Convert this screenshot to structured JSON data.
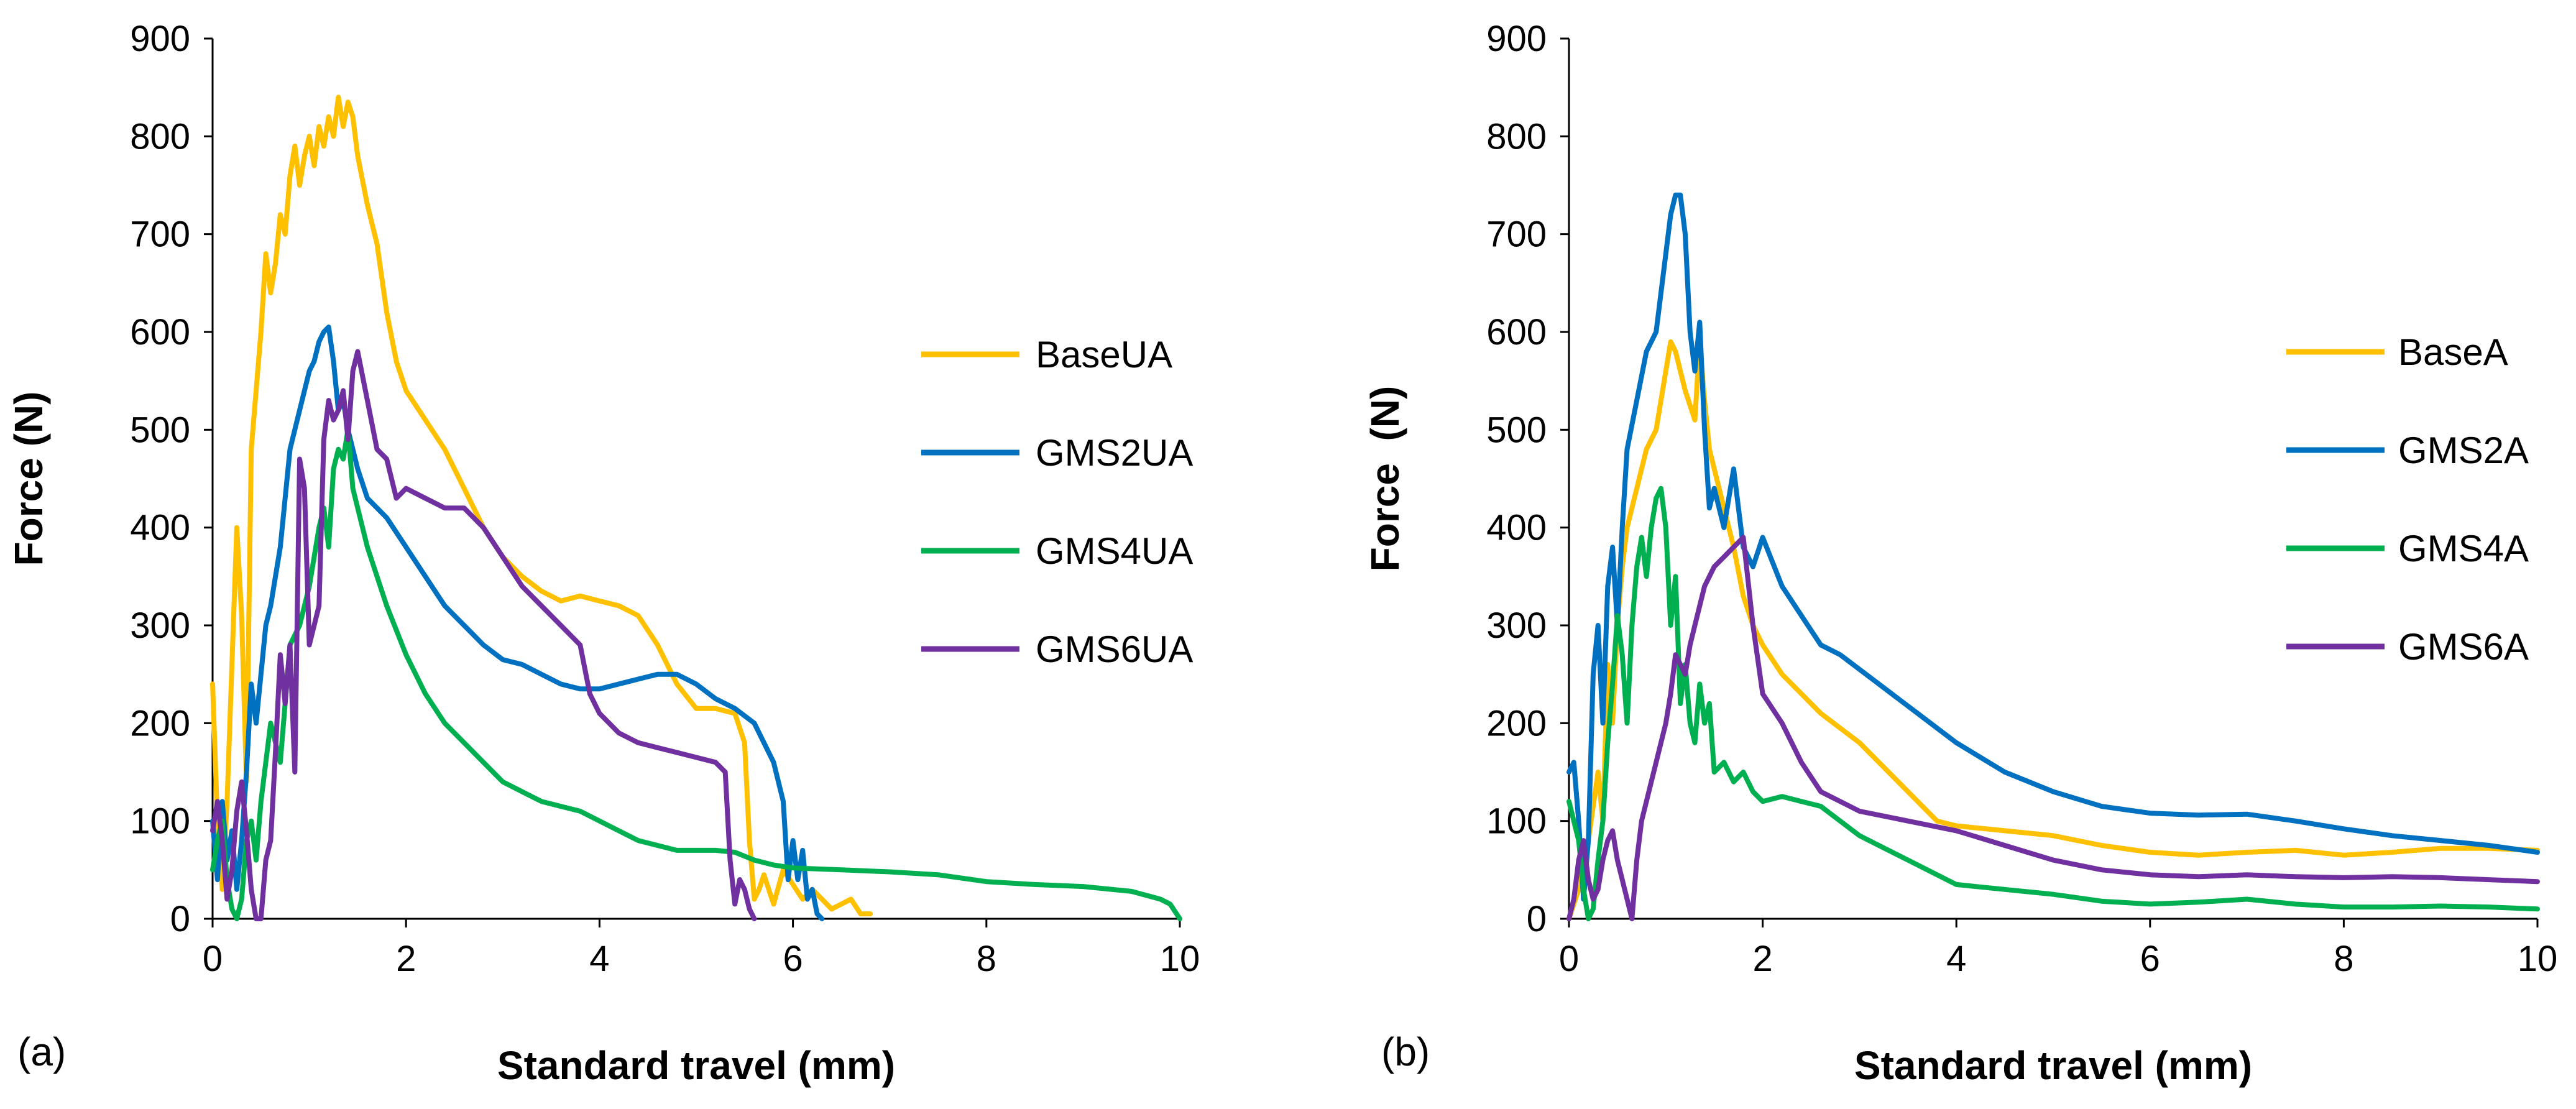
{
  "chart_data": [
    {
      "type": "line",
      "panel_label": "(a)",
      "xlabel": "Standard travel (mm)",
      "ylabel": "Force (N)",
      "xlim": [
        0,
        10
      ],
      "ylim": [
        0,
        900
      ],
      "xticks": [
        "0",
        "2",
        "4",
        "6",
        "8",
        "10"
      ],
      "yticks": [
        "0",
        "100",
        "200",
        "300",
        "400",
        "500",
        "600",
        "700",
        "800",
        "900"
      ],
      "grid": false,
      "legend_position": "right",
      "series": [
        {
          "name": "BaseUA",
          "color": "#FFC000",
          "x": [
            0,
            0.05,
            0.1,
            0.15,
            0.2,
            0.25,
            0.3,
            0.35,
            0.4,
            0.45,
            0.5,
            0.55,
            0.6,
            0.65,
            0.7,
            0.75,
            0.8,
            0.85,
            0.9,
            0.95,
            1.0,
            1.05,
            1.1,
            1.15,
            1.2,
            1.25,
            1.3,
            1.35,
            1.4,
            1.45,
            1.5,
            1.6,
            1.7,
            1.8,
            1.9,
            2.0,
            2.2,
            2.4,
            2.6,
            2.8,
            3.0,
            3.2,
            3.4,
            3.6,
            3.8,
            4.0,
            4.2,
            4.4,
            4.6,
            4.8,
            5.0,
            5.2,
            5.4,
            5.5,
            5.55,
            5.6,
            5.65,
            5.7,
            5.8,
            5.9,
            6.0,
            6.1,
            6.2,
            6.3,
            6.4,
            6.5,
            6.6,
            6.7,
            6.8
          ],
          "y": [
            240,
            100,
            30,
            120,
            260,
            400,
            310,
            140,
            480,
            540,
            600,
            680,
            640,
            670,
            720,
            700,
            760,
            790,
            750,
            780,
            800,
            770,
            810,
            790,
            820,
            800,
            840,
            810,
            835,
            820,
            780,
            730,
            690,
            620,
            570,
            540,
            510,
            480,
            440,
            400,
            370,
            350,
            335,
            325,
            330,
            325,
            320,
            310,
            280,
            240,
            215,
            215,
            210,
            180,
            80,
            20,
            30,
            45,
            15,
            50,
            35,
            20,
            30,
            20,
            10,
            15,
            20,
            5,
            5
          ]
        },
        {
          "name": "GMS2UA",
          "color": "#0070C0",
          "x": [
            0,
            0.05,
            0.1,
            0.15,
            0.2,
            0.25,
            0.3,
            0.35,
            0.4,
            0.45,
            0.5,
            0.55,
            0.6,
            0.7,
            0.8,
            0.9,
            1.0,
            1.05,
            1.1,
            1.15,
            1.2,
            1.25,
            1.3,
            1.35,
            1.4,
            1.5,
            1.6,
            1.8,
            2.0,
            2.2,
            2.4,
            2.6,
            2.8,
            3.0,
            3.2,
            3.4,
            3.6,
            3.8,
            4.0,
            4.2,
            4.4,
            4.6,
            4.8,
            5.0,
            5.2,
            5.4,
            5.6,
            5.8,
            5.9,
            5.95,
            6.0,
            6.05,
            6.1,
            6.15,
            6.2,
            6.25,
            6.3
          ],
          "y": [
            100,
            40,
            120,
            60,
            90,
            30,
            80,
            150,
            240,
            200,
            250,
            300,
            320,
            380,
            480,
            520,
            560,
            570,
            590,
            600,
            605,
            570,
            520,
            530,
            500,
            460,
            430,
            410,
            380,
            350,
            320,
            300,
            280,
            265,
            260,
            250,
            240,
            235,
            235,
            240,
            245,
            250,
            250,
            240,
            225,
            215,
            200,
            160,
            120,
            40,
            80,
            40,
            70,
            20,
            30,
            5,
            0
          ]
        },
        {
          "name": "GMS4UA",
          "color": "#00B050",
          "x": [
            0,
            0.05,
            0.1,
            0.15,
            0.2,
            0.25,
            0.3,
            0.35,
            0.4,
            0.45,
            0.5,
            0.6,
            0.7,
            0.8,
            0.9,
            1.0,
            1.1,
            1.15,
            1.2,
            1.25,
            1.3,
            1.35,
            1.4,
            1.45,
            1.5,
            1.6,
            1.7,
            1.8,
            2.0,
            2.2,
            2.4,
            2.6,
            2.8,
            3.0,
            3.2,
            3.4,
            3.6,
            3.8,
            4.0,
            4.2,
            4.4,
            4.6,
            4.8,
            5.0,
            5.2,
            5.4,
            5.6,
            5.8,
            6.0,
            6.5,
            7.0,
            7.5,
            8.0,
            8.5,
            9.0,
            9.5,
            9.8,
            9.9,
            10.0
          ],
          "y": [
            50,
            80,
            100,
            40,
            10,
            0,
            20,
            80,
            100,
            60,
            120,
            200,
            160,
            280,
            300,
            340,
            400,
            420,
            380,
            460,
            480,
            470,
            500,
            440,
            420,
            380,
            350,
            320,
            270,
            230,
            200,
            180,
            160,
            140,
            130,
            120,
            115,
            110,
            100,
            90,
            80,
            75,
            70,
            70,
            70,
            68,
            60,
            55,
            52,
            50,
            48,
            45,
            38,
            35,
            33,
            28,
            20,
            15,
            0
          ]
        },
        {
          "name": "GMS6UA",
          "color": "#7030A0",
          "x": [
            0,
            0.05,
            0.1,
            0.15,
            0.2,
            0.25,
            0.3,
            0.35,
            0.4,
            0.45,
            0.5,
            0.55,
            0.6,
            0.65,
            0.7,
            0.75,
            0.8,
            0.85,
            0.9,
            0.95,
            1.0,
            1.05,
            1.1,
            1.15,
            1.2,
            1.25,
            1.3,
            1.35,
            1.4,
            1.45,
            1.5,
            1.6,
            1.7,
            1.8,
            1.9,
            2.0,
            2.2,
            2.4,
            2.6,
            2.8,
            3.0,
            3.2,
            3.4,
            3.6,
            3.8,
            3.9,
            4.0,
            4.2,
            4.4,
            4.6,
            4.8,
            5.0,
            5.2,
            5.3,
            5.35,
            5.4,
            5.45,
            5.5,
            5.55,
            5.6
          ],
          "y": [
            90,
            120,
            80,
            20,
            50,
            110,
            140,
            90,
            30,
            0,
            0,
            60,
            80,
            170,
            270,
            220,
            280,
            150,
            470,
            440,
            280,
            300,
            320,
            490,
            530,
            510,
            520,
            540,
            490,
            560,
            580,
            530,
            480,
            470,
            430,
            440,
            430,
            420,
            420,
            400,
            370,
            340,
            320,
            300,
            280,
            230,
            210,
            190,
            180,
            175,
            170,
            165,
            160,
            150,
            60,
            15,
            40,
            30,
            10,
            0
          ]
        }
      ]
    },
    {
      "type": "line",
      "panel_label": "(b)",
      "xlabel": "Standard travel (mm)",
      "ylabel": "Force  (N)",
      "xlim": [
        0,
        10
      ],
      "ylim": [
        0,
        900
      ],
      "xticks": [
        "0",
        "2",
        "4",
        "6",
        "8",
        "10"
      ],
      "yticks": [
        "0",
        "100",
        "200",
        "300",
        "400",
        "500",
        "600",
        "700",
        "800",
        "900"
      ],
      "grid": false,
      "legend_position": "right",
      "series": [
        {
          "name": "BaseA",
          "color": "#FFC000",
          "x": [
            0,
            0.1,
            0.2,
            0.3,
            0.35,
            0.4,
            0.45,
            0.5,
            0.55,
            0.6,
            0.7,
            0.8,
            0.9,
            1.0,
            1.05,
            1.1,
            1.2,
            1.3,
            1.35,
            1.4,
            1.45,
            1.5,
            1.6,
            1.7,
            1.8,
            1.9,
            2.0,
            2.2,
            2.4,
            2.6,
            2.8,
            3.0,
            3.2,
            3.4,
            3.6,
            3.8,
            4.0,
            4.5,
            5.0,
            5.5,
            6.0,
            6.5,
            7.0,
            7.5,
            8.0,
            8.5,
            9.0,
            9.5,
            10.0
          ],
          "y": [
            0,
            30,
            80,
            150,
            100,
            260,
            200,
            300,
            360,
            400,
            440,
            480,
            500,
            560,
            590,
            580,
            540,
            510,
            590,
            530,
            480,
            460,
            420,
            380,
            330,
            300,
            280,
            250,
            230,
            210,
            195,
            180,
            160,
            140,
            120,
            100,
            95,
            90,
            85,
            75,
            68,
            65,
            68,
            70,
            65,
            68,
            72,
            72,
            70
          ]
        },
        {
          "name": "GMS2A",
          "color": "#0070C0",
          "x": [
            0,
            0.05,
            0.1,
            0.15,
            0.2,
            0.25,
            0.3,
            0.35,
            0.4,
            0.45,
            0.5,
            0.55,
            0.6,
            0.7,
            0.8,
            0.9,
            1.0,
            1.05,
            1.1,
            1.15,
            1.2,
            1.25,
            1.3,
            1.35,
            1.4,
            1.45,
            1.5,
            1.6,
            1.7,
            1.8,
            1.9,
            2.0,
            2.2,
            2.4,
            2.6,
            2.8,
            3.0,
            3.2,
            3.4,
            3.6,
            3.8,
            4.0,
            4.5,
            5.0,
            5.5,
            6.0,
            6.5,
            7.0,
            7.5,
            8.0,
            8.5,
            9.0,
            9.5,
            10.0
          ],
          "y": [
            150,
            160,
            100,
            20,
            80,
            250,
            300,
            200,
            340,
            380,
            300,
            400,
            480,
            530,
            580,
            600,
            680,
            720,
            740,
            740,
            700,
            600,
            560,
            610,
            500,
            420,
            440,
            400,
            460,
            380,
            360,
            390,
            340,
            310,
            280,
            270,
            255,
            240,
            225,
            210,
            195,
            180,
            150,
            130,
            115,
            108,
            106,
            107,
            100,
            92,
            85,
            80,
            75,
            68
          ]
        },
        {
          "name": "GMS4A",
          "color": "#00B050",
          "x": [
            0,
            0.05,
            0.1,
            0.15,
            0.2,
            0.25,
            0.3,
            0.35,
            0.4,
            0.45,
            0.5,
            0.55,
            0.6,
            0.65,
            0.7,
            0.75,
            0.8,
            0.85,
            0.9,
            0.95,
            1.0,
            1.05,
            1.1,
            1.15,
            1.2,
            1.25,
            1.3,
            1.35,
            1.4,
            1.45,
            1.5,
            1.6,
            1.7,
            1.8,
            1.9,
            2.0,
            2.2,
            2.4,
            2.6,
            2.8,
            3.0,
            3.5,
            4.0,
            4.5,
            5.0,
            5.5,
            6.0,
            6.5,
            7.0,
            7.5,
            8.0,
            8.5,
            9.0,
            9.5,
            10.0
          ],
          "y": [
            120,
            100,
            80,
            30,
            0,
            10,
            60,
            100,
            180,
            240,
            310,
            270,
            200,
            300,
            360,
            390,
            350,
            400,
            430,
            440,
            400,
            300,
            350,
            220,
            260,
            200,
            180,
            240,
            200,
            220,
            150,
            160,
            140,
            150,
            130,
            120,
            125,
            120,
            115,
            100,
            85,
            60,
            35,
            30,
            25,
            18,
            15,
            17,
            20,
            15,
            12,
            12,
            13,
            12,
            10
          ]
        },
        {
          "name": "GMS6A",
          "color": "#7030A0",
          "x": [
            0,
            0.05,
            0.1,
            0.15,
            0.2,
            0.25,
            0.3,
            0.35,
            0.4,
            0.45,
            0.5,
            0.55,
            0.6,
            0.65,
            0.7,
            0.75,
            0.8,
            0.85,
            0.9,
            0.95,
            1.0,
            1.05,
            1.1,
            1.15,
            1.2,
            1.25,
            1.3,
            1.35,
            1.4,
            1.45,
            1.5,
            1.6,
            1.7,
            1.8,
            1.9,
            2.0,
            2.2,
            2.4,
            2.6,
            2.8,
            3.0,
            3.5,
            4.0,
            4.5,
            5.0,
            5.5,
            6.0,
            6.5,
            7.0,
            7.5,
            8.0,
            8.5,
            9.0,
            9.5,
            10.0
          ],
          "y": [
            0,
            20,
            60,
            80,
            40,
            20,
            30,
            60,
            80,
            90,
            60,
            40,
            20,
            0,
            60,
            100,
            120,
            140,
            160,
            180,
            200,
            230,
            270,
            260,
            250,
            280,
            300,
            320,
            340,
            350,
            360,
            370,
            380,
            390,
            300,
            230,
            200,
            160,
            130,
            120,
            110,
            100,
            90,
            75,
            60,
            50,
            45,
            43,
            45,
            43,
            42,
            43,
            42,
            40,
            38
          ]
        }
      ]
    }
  ]
}
